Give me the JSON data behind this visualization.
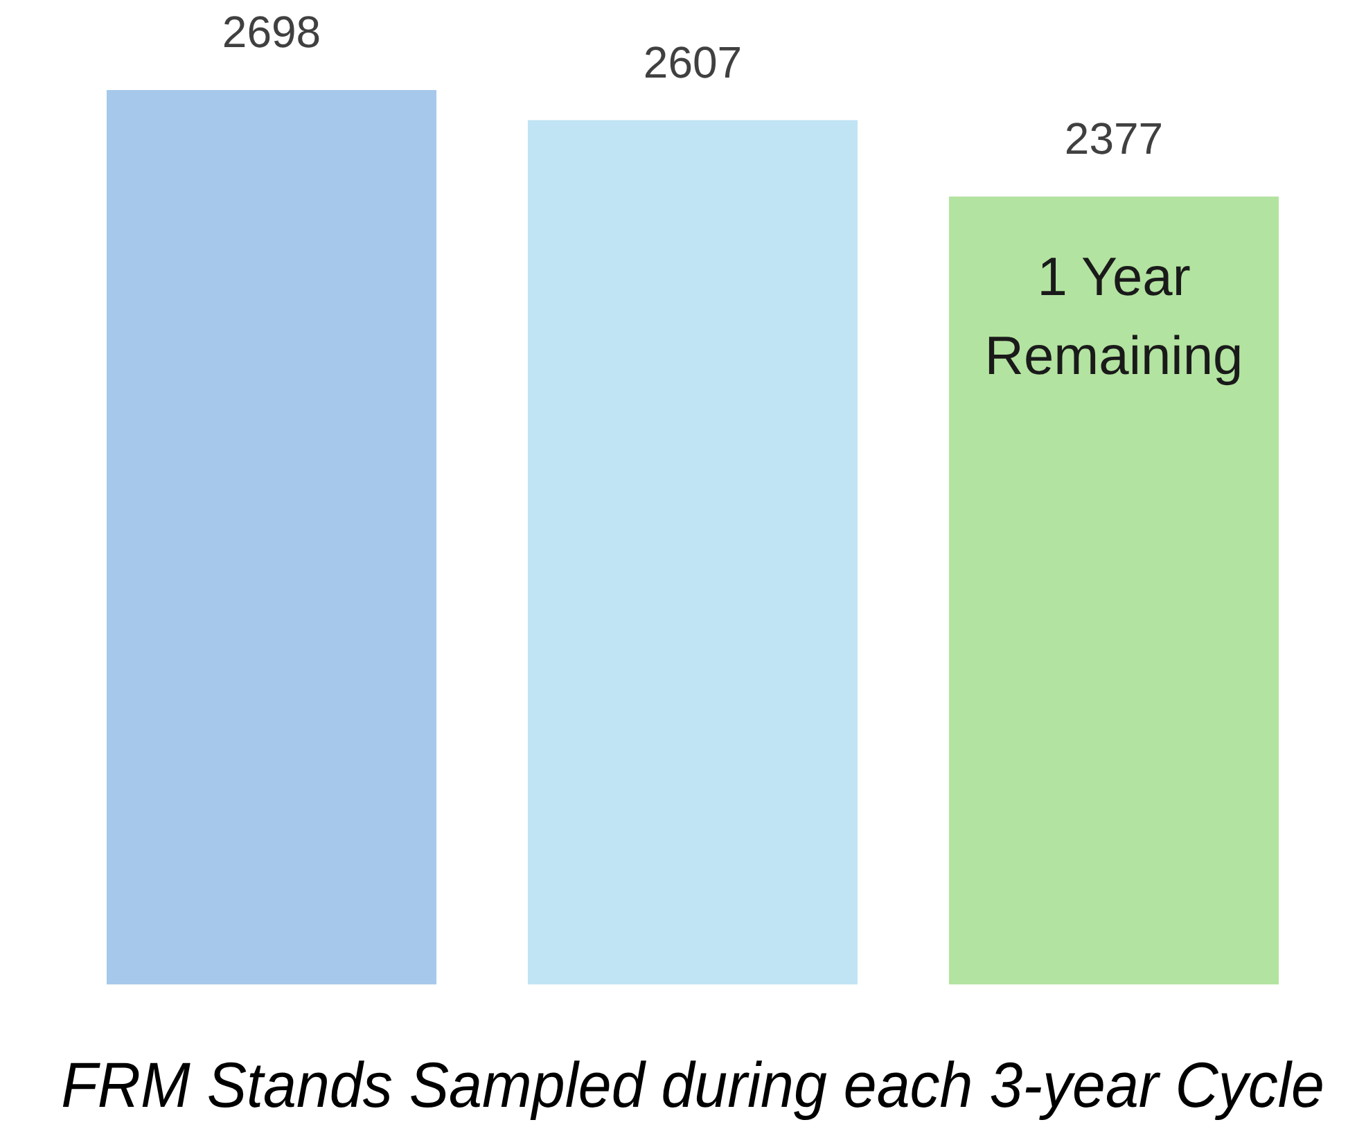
{
  "chart_data": {
    "type": "bar",
    "xlabel": "FRM Stands Sampled during each 3-year Cycle",
    "categories": [
      null,
      null,
      null
    ],
    "values": [
      2698,
      2607,
      2377
    ],
    "colors": [
      "#a6c8eb",
      "#c0e4f4",
      "#b3e3a0"
    ],
    "data_labels": true,
    "tick_labels": false,
    "annotations": [
      "1 Year Remaining"
    ]
  }
}
